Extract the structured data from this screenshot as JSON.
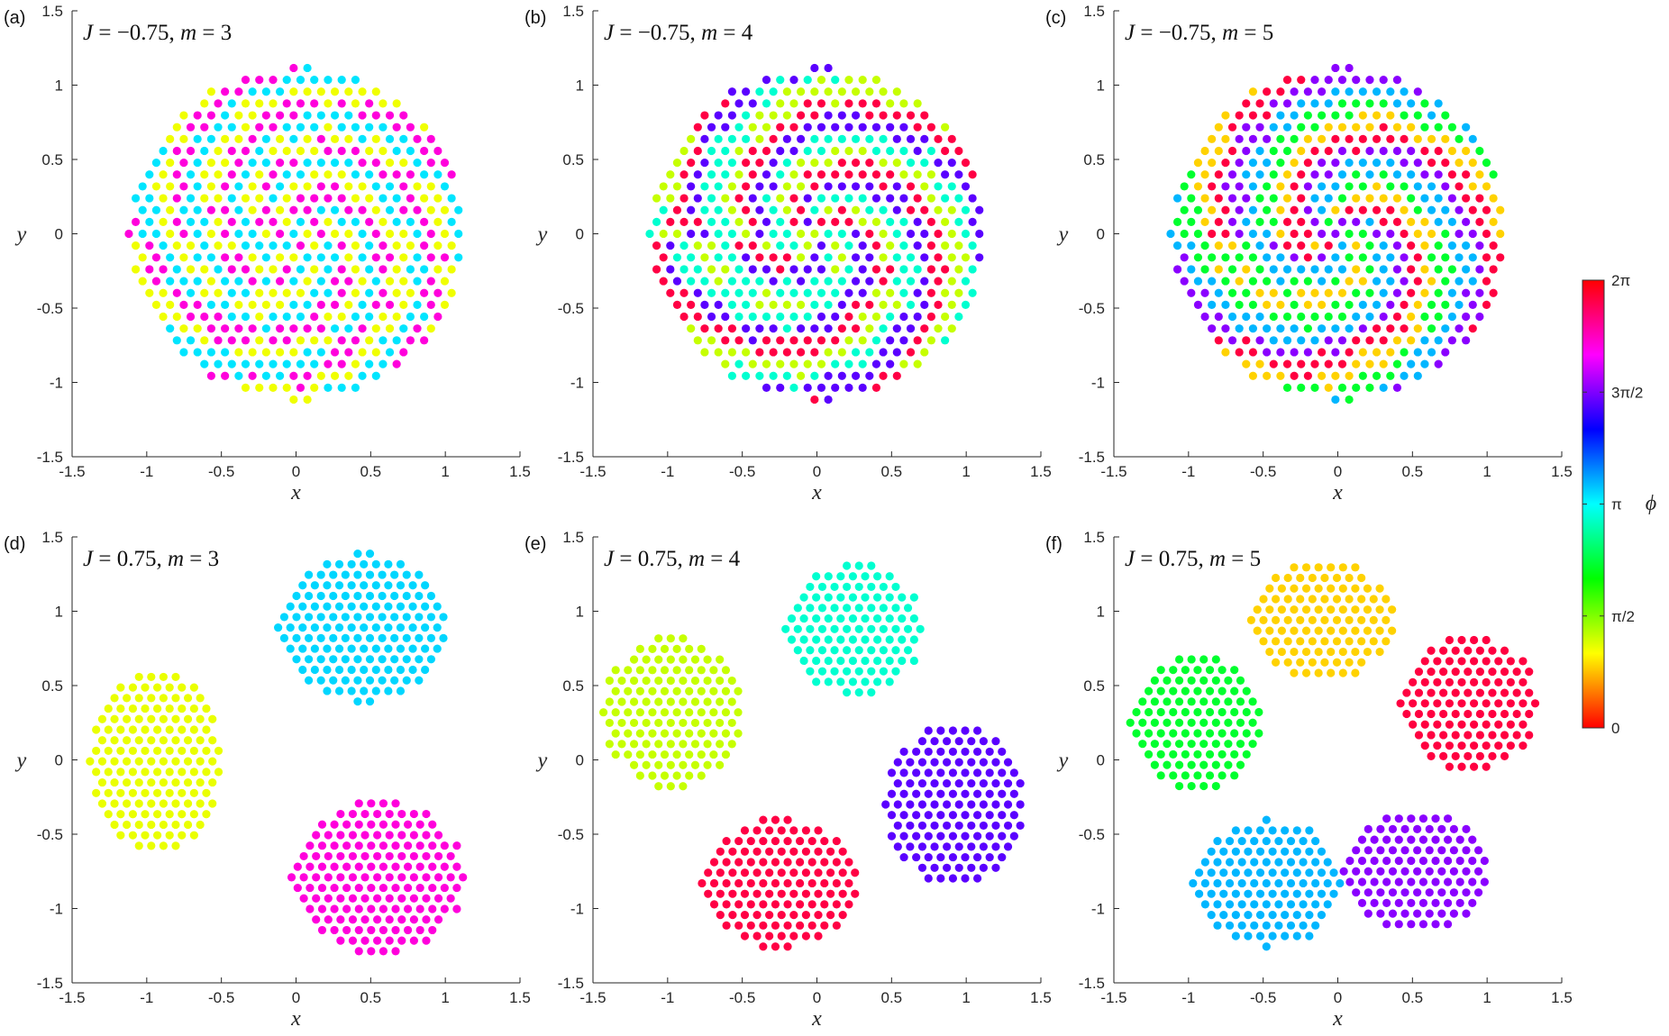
{
  "chart_data": [
    {
      "type": "scatter",
      "panel_label": "(a)",
      "title": {
        "j_label": "J",
        "j_value": "−0.75",
        "m_label": "m",
        "m_value": "3"
      },
      "xlabel": "x",
      "ylabel": "y",
      "xlim": [
        -1.5,
        1.5
      ],
      "ylim": [
        -1.5,
        1.5
      ],
      "xticks": [
        "-1.5",
        "-1",
        "-0.5",
        "0",
        "0.5",
        "1",
        "1.5"
      ],
      "yticks": [
        "-1.5",
        "-1",
        "-0.5",
        "0",
        "0.5",
        "1",
        "1.5"
      ],
      "layout": "mixed-disk",
      "disk_center": [
        0,
        0
      ],
      "disk_radius": 1.12,
      "phase_colors": [
        "#f0ff00",
        "#00e5ff",
        "#ff00dc"
      ]
    },
    {
      "type": "scatter",
      "panel_label": "(b)",
      "title": {
        "j_label": "J",
        "j_value": "−0.75",
        "m_label": "m",
        "m_value": "4"
      },
      "xlabel": "x",
      "ylabel": "y",
      "xlim": [
        -1.5,
        1.5
      ],
      "ylim": [
        -1.5,
        1.5
      ],
      "xticks": [
        "-1.5",
        "-1",
        "-0.5",
        "0",
        "0.5",
        "1",
        "1.5"
      ],
      "yticks": [
        "-1.5",
        "-1",
        "-0.5",
        "0",
        "0.5",
        "1",
        "1.5"
      ],
      "layout": "mixed-disk",
      "disk_center": [
        0,
        0
      ],
      "disk_radius": 1.12,
      "phase_colors": [
        "#c6ff00",
        "#00ffd0",
        "#5a00ff",
        "#ff0044"
      ]
    },
    {
      "type": "scatter",
      "panel_label": "(c)",
      "title": {
        "j_label": "J",
        "j_value": "−0.75",
        "m_label": "m",
        "m_value": "5"
      },
      "xlabel": "x",
      "ylabel": "y",
      "xlim": [
        -1.5,
        1.5
      ],
      "ylim": [
        -1.5,
        1.5
      ],
      "xticks": [
        "-1.5",
        "-1",
        "-0.5",
        "0",
        "0.5",
        "1",
        "1.5"
      ],
      "yticks": [
        "-1.5",
        "-1",
        "-0.5",
        "0",
        "0.5",
        "1",
        "1.5"
      ],
      "layout": "mixed-disk",
      "disk_center": [
        0,
        0
      ],
      "disk_radius": 1.12,
      "phase_colors": [
        "#ffd200",
        "#00ff2e",
        "#00b6ff",
        "#8a00ff",
        "#ff0040"
      ]
    },
    {
      "type": "scatter",
      "panel_label": "(d)",
      "title": {
        "j_label": "J",
        "j_value": "0.75",
        "m_label": "m",
        "m_value": "3"
      },
      "xlabel": "x",
      "ylabel": "y",
      "xlim": [
        -1.5,
        1.5
      ],
      "ylim": [
        -1.5,
        1.5
      ],
      "xticks": [
        "-1.5",
        "-1",
        "-0.5",
        "0",
        "0.5",
        "1",
        "1.5"
      ],
      "yticks": [
        "-1.5",
        "-1",
        "-0.5",
        "0",
        "0.5",
        "1",
        "1.5"
      ],
      "layout": "clusters",
      "clusters": [
        {
          "center": [
            -0.94,
            -0.01
          ],
          "rx": 0.44,
          "ry": 0.62,
          "color": "#eaff00"
        },
        {
          "center": [
            0.45,
            0.89
          ],
          "rx": 0.57,
          "ry": 0.5,
          "color": "#00d6ff"
        },
        {
          "center": [
            0.55,
            -0.79
          ],
          "rx": 0.58,
          "ry": 0.52,
          "color": "#ff00dc"
        }
      ]
    },
    {
      "type": "scatter",
      "panel_label": "(e)",
      "title": {
        "j_label": "J",
        "j_value": "0.75",
        "m_label": "m",
        "m_value": "4"
      },
      "xlabel": "x",
      "ylabel": "y",
      "xlim": [
        -1.5,
        1.5
      ],
      "ylim": [
        -1.5,
        1.5
      ],
      "xticks": [
        "-1.5",
        "-1",
        "-0.5",
        "0",
        "0.5",
        "1",
        "1.5"
      ],
      "yticks": [
        "-1.5",
        "-1",
        "-0.5",
        "0",
        "0.5",
        "1",
        "1.5"
      ],
      "layout": "clusters",
      "clusters": [
        {
          "center": [
            -0.97,
            0.32
          ],
          "rx": 0.46,
          "ry": 0.52,
          "color": "#c6ff00"
        },
        {
          "center": [
            0.25,
            0.88
          ],
          "rx": 0.46,
          "ry": 0.44,
          "color": "#00ffd0"
        },
        {
          "center": [
            0.92,
            -0.3
          ],
          "rx": 0.46,
          "ry": 0.54,
          "color": "#5a00ff"
        },
        {
          "center": [
            -0.25,
            -0.83
          ],
          "rx": 0.52,
          "ry": 0.44,
          "color": "#ff0044"
        }
      ]
    },
    {
      "type": "scatter",
      "panel_label": "(f)",
      "title": {
        "j_label": "J",
        "j_value": "0.75",
        "m_label": "m",
        "m_value": "5"
      },
      "xlabel": "x",
      "ylabel": "y",
      "xlim": [
        -1.5,
        1.5
      ],
      "ylim": [
        -1.5,
        1.5
      ],
      "xticks": [
        "-1.5",
        "-1",
        "-0.5",
        "0",
        "0.5",
        "1",
        "1.5"
      ],
      "yticks": [
        "-1.5",
        "-1",
        "-0.5",
        "0",
        "0.5",
        "1",
        "1.5"
      ],
      "layout": "clusters",
      "clusters": [
        {
          "center": [
            -0.1,
            0.94
          ],
          "rx": 0.48,
          "ry": 0.4,
          "color": "#ffd200"
        },
        {
          "center": [
            -0.95,
            0.25
          ],
          "rx": 0.44,
          "ry": 0.46,
          "color": "#00ff2e"
        },
        {
          "center": [
            0.88,
            0.38
          ],
          "rx": 0.46,
          "ry": 0.46,
          "color": "#ff0040"
        },
        {
          "center": [
            -0.47,
            -0.83
          ],
          "rx": 0.5,
          "ry": 0.43,
          "color": "#00b6ff"
        },
        {
          "center": [
            0.52,
            -0.75
          ],
          "rx": 0.48,
          "ry": 0.42,
          "color": "#8a00ff"
        }
      ]
    }
  ],
  "colorbar": {
    "label": "ϕ",
    "range": [
      0,
      6.283
    ],
    "tick_labels": [
      "0",
      "π/2",
      "π",
      "3π/2",
      "2π"
    ],
    "gradient": [
      "#ff0000",
      "#ffff00",
      "#00ff00",
      "#00ffff",
      "#0000ff",
      "#ff00ff",
      "#ff0000"
    ]
  }
}
